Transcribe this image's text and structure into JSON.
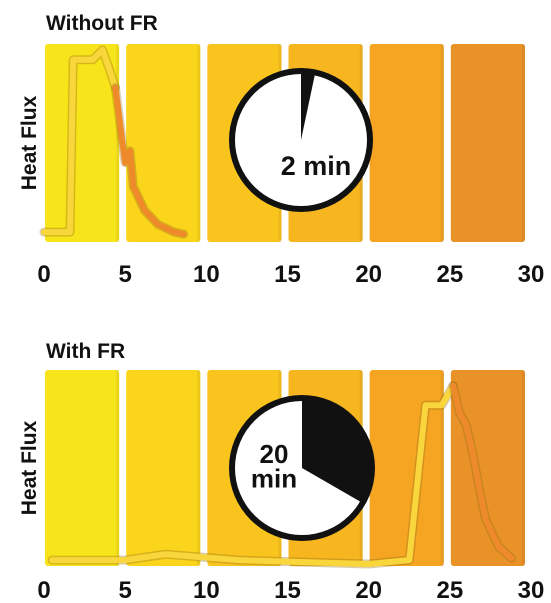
{
  "chart_data": [
    {
      "type": "line",
      "title": "Without FR",
      "ylabel": "Heat Flux",
      "xlabel": "",
      "xlim": [
        0,
        30
      ],
      "x_ticks": [
        "0",
        "5",
        "10",
        "15",
        "20",
        "25",
        "30"
      ],
      "grid": false,
      "band_colors": [
        "#f8e41a",
        "#fbd51c",
        "#f9c41e",
        "#f7b620",
        "#f5a522",
        "#e99227"
      ],
      "timer": {
        "label": "2 min",
        "minutes": 2
      },
      "series": [
        {
          "color": "#f8d63c",
          "x": [
            0,
            1.6,
            1.8,
            3.0,
            3.6,
            4.0,
            4.4
          ],
          "y": [
            0.05,
            0.05,
            0.92,
            0.92,
            0.97,
            0.88,
            0.78
          ]
        },
        {
          "color": "#ee8a2a",
          "x": [
            4.4,
            4.8,
            5.0,
            5.3,
            5.5,
            6.2,
            7.0,
            8.0,
            8.6
          ],
          "y": [
            0.78,
            0.52,
            0.4,
            0.46,
            0.28,
            0.16,
            0.09,
            0.05,
            0.04
          ]
        }
      ]
    },
    {
      "type": "line",
      "title": "With FR",
      "ylabel": "Heat Flux",
      "xlabel": "",
      "xlim": [
        0,
        30
      ],
      "x_ticks": [
        "0",
        "5",
        "10",
        "15",
        "20",
        "25",
        "30"
      ],
      "grid": false,
      "band_colors": [
        "#f8e41a",
        "#fbd51c",
        "#f9c41e",
        "#f7b620",
        "#f5a522",
        "#e99227"
      ],
      "timer": {
        "label": "20 min",
        "minutes": 20
      },
      "series": [
        {
          "color": "#f8d63c",
          "x": [
            0.5,
            5.0,
            7.5,
            12,
            16,
            20,
            22.5,
            23.5,
            24.5,
            25.2
          ],
          "y": [
            0.03,
            0.03,
            0.06,
            0.03,
            0.02,
            0.01,
            0.03,
            0.82,
            0.82,
            0.92
          ]
        },
        {
          "color": "#ee8a2a",
          "x": [
            25.2,
            25.6,
            26.0,
            26.4,
            26.8,
            27.2,
            28.0,
            28.8
          ],
          "y": [
            0.92,
            0.78,
            0.72,
            0.58,
            0.4,
            0.24,
            0.1,
            0.04
          ]
        }
      ]
    }
  ]
}
